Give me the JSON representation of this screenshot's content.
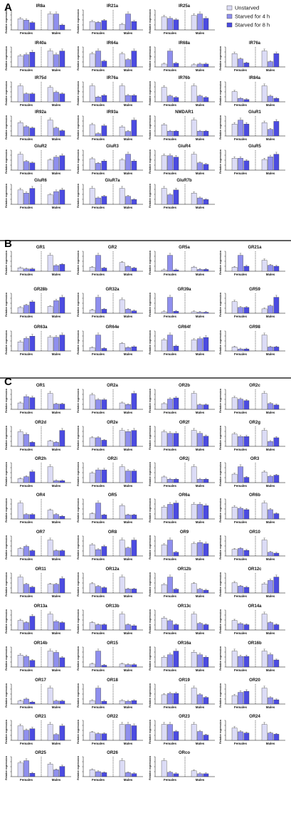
{
  "sections": [
    {
      "letter": "A",
      "panels": [
        {
          "title": "IR8a"
        },
        {
          "title": "IR21a"
        },
        {
          "title": "IR25a"
        },
        {
          "title": "IR40a"
        },
        {
          "title": "IR64a"
        },
        {
          "title": "IR68a"
        },
        {
          "title": "IR76a"
        },
        {
          "title": "IR75d"
        },
        {
          "title": "IR76a"
        },
        {
          "title": "IR76b"
        },
        {
          "title": "IR84a"
        },
        {
          "title": "IR92a"
        },
        {
          "title": "IR93a"
        },
        {
          "title": "NMDAR1"
        },
        {
          "title": "GluR1"
        },
        {
          "title": "GluR2"
        },
        {
          "title": "GluR3"
        },
        {
          "title": "GluR4"
        },
        {
          "title": "GluR5"
        },
        {
          "title": "GluR6"
        },
        {
          "title": "GluR7a"
        },
        {
          "title": "GluR7b"
        }
      ]
    },
    {
      "letter": "B",
      "panels": [
        {
          "title": "GR1"
        },
        {
          "title": "GR2"
        },
        {
          "title": "GR5a"
        },
        {
          "title": "GR21a"
        },
        {
          "title": "GR28b"
        },
        {
          "title": "GR32a"
        },
        {
          "title": "GR39a"
        },
        {
          "title": "GR59"
        },
        {
          "title": "GR63a"
        },
        {
          "title": "GR64e"
        },
        {
          "title": "GR64f"
        },
        {
          "title": "GR98"
        }
      ]
    },
    {
      "letter": "C",
      "panels": [
        {
          "title": "OR1"
        },
        {
          "title": "OR2a"
        },
        {
          "title": "OR2b"
        },
        {
          "title": "OR2c"
        },
        {
          "title": "OR2d"
        },
        {
          "title": "OR2e"
        },
        {
          "title": "OR2f"
        },
        {
          "title": "OR2g"
        },
        {
          "title": "OR2h"
        },
        {
          "title": "OR2i"
        },
        {
          "title": "OR2j"
        },
        {
          "title": "OR3"
        },
        {
          "title": "OR4"
        },
        {
          "title": "OR5"
        },
        {
          "title": "OR6a"
        },
        {
          "title": "OR6b"
        },
        {
          "title": "OR7"
        },
        {
          "title": "OR8"
        },
        {
          "title": "OR9"
        },
        {
          "title": "OR10"
        },
        {
          "title": "OR11"
        },
        {
          "title": "OR12a"
        },
        {
          "title": "OR12b"
        },
        {
          "title": "OR12c"
        },
        {
          "title": "OR13a"
        },
        {
          "title": "OR13b"
        },
        {
          "title": "OR13c"
        },
        {
          "title": "OR14a"
        },
        {
          "title": "OR14b"
        },
        {
          "title": "OR15"
        },
        {
          "title": "OR16a"
        },
        {
          "title": "OR16b"
        },
        {
          "title": "OR17"
        },
        {
          "title": "OR18"
        },
        {
          "title": "OR19"
        },
        {
          "title": "OR20"
        },
        {
          "title": "OR21"
        },
        {
          "title": "OR22"
        },
        {
          "title": "OR23"
        },
        {
          "title": "OR24"
        },
        {
          "title": "OR25"
        },
        {
          "title": "OR26"
        },
        {
          "title": "ORco"
        }
      ]
    }
  ],
  "chart_data": {
    "type": "bar",
    "grid": false,
    "legend_placement": "top-right",
    "groups": [
      "Females",
      "Males"
    ],
    "ylabel": "Relative expression",
    "series": [
      {
        "name": "Unstarved",
        "color": "#dcdcf6"
      },
      {
        "name": "Starved for 4 h",
        "color": "#8f8fee"
      },
      {
        "name": "Starved for 8 h",
        "color": "#4b4be0"
      }
    ],
    "series_note_values": "values per panel: [Females U, 4h, 8h, Males U, 4h, 8h] in relative expression units (estimated)",
    "panels": [
      {
        "title": "IR8a",
        "values": [
          0.9,
          0.8,
          0.6,
          1.3,
          1.3,
          0.4
        ]
      },
      {
        "title": "IR21a",
        "values": [
          0.9,
          0.8,
          1.0,
          0.6,
          1.7,
          0.9
        ]
      },
      {
        "title": "IR25a",
        "values": [
          0.9,
          0.8,
          0.7,
          1.0,
          1.1,
          0.8
        ]
      },
      {
        "title": "IR40a",
        "values": [
          0.9,
          1.0,
          1.2,
          1.3,
          1.0,
          1.3
        ]
      },
      {
        "title": "IR64a",
        "values": [
          0.9,
          1.1,
          0.4,
          0.9,
          0.5,
          1.1
        ]
      },
      {
        "title": "IR68a",
        "values": [
          0.4,
          2.2,
          0.5,
          0.3,
          0.4,
          0.4
        ]
      },
      {
        "title": "IR76a",
        "values": [
          1.0,
          0.6,
          0.3,
          1.2,
          0.4,
          1.0
        ]
      },
      {
        "title": "IR75d",
        "values": [
          1.0,
          0.5,
          0.5,
          0.9,
          0.6,
          0.5
        ]
      },
      {
        "title": "IR76a",
        "values": [
          1.0,
          0.3,
          0.4,
          1.0,
          0.4,
          0.4
        ]
      },
      {
        "title": "IR76b",
        "values": [
          1.0,
          0.4,
          0.3,
          1.1,
          0.4,
          0.3
        ]
      },
      {
        "title": "IR84a",
        "values": [
          0.9,
          0.3,
          0.2,
          1.4,
          0.5,
          0.3
        ]
      },
      {
        "title": "IR92a",
        "values": [
          1.0,
          0.7,
          0.6,
          1.2,
          0.6,
          0.4
        ]
      },
      {
        "title": "IR93a",
        "values": [
          1.0,
          0.2,
          0.9,
          0.8,
          0.4,
          1.4
        ]
      },
      {
        "title": "NMDAR1",
        "values": [
          0.7,
          0.3,
          0.3,
          1.0,
          0.3,
          0.3
        ]
      },
      {
        "title": "GluR1",
        "values": [
          0.9,
          1.2,
          0.9,
          1.0,
          0.5,
          1.1
        ]
      },
      {
        "title": "GluR2",
        "values": [
          1.1,
          0.6,
          0.5,
          0.7,
          0.9,
          1.0
        ]
      },
      {
        "title": "GluR3",
        "values": [
          1.0,
          0.6,
          0.8,
          0.9,
          1.4,
          0.8
        ]
      },
      {
        "title": "GluR4",
        "values": [
          1.0,
          1.0,
          0.9,
          1.1,
          0.5,
          0.4
        ]
      },
      {
        "title": "GluR5",
        "values": [
          0.9,
          0.9,
          0.7,
          0.8,
          1.0,
          1.2
        ]
      },
      {
        "title": "GluR6",
        "values": [
          0.9,
          0.7,
          1.0,
          0.6,
          0.8,
          0.9
        ]
      },
      {
        "title": "GluR7a",
        "values": [
          1.0,
          0.4,
          0.5,
          1.0,
          0.5,
          0.3
        ]
      },
      {
        "title": "GluR7b",
        "values": [
          1.0,
          0.6,
          0.9,
          0.7,
          0.4,
          0.3
        ]
      },
      {
        "title": "GR1",
        "values": [
          0.3,
          0.2,
          0.2,
          1.4,
          0.5,
          0.6
        ]
      },
      {
        "title": "GR2",
        "values": [
          0.5,
          2.0,
          0.4,
          1.1,
          0.6,
          0.4
        ]
      },
      {
        "title": "GR5a",
        "values": [
          0.3,
          3.5,
          0.3,
          0.9,
          0.4,
          0.4
        ]
      },
      {
        "title": "GR21a",
        "values": [
          0.4,
          1.6,
          0.5,
          1.1,
          0.6,
          0.5
        ]
      },
      {
        "title": "GR28b",
        "values": [
          0.5,
          0.7,
          1.0,
          0.6,
          1.1,
          1.4
        ]
      },
      {
        "title": "GR32a",
        "values": [
          0.4,
          2.0,
          0.5,
          1.7,
          0.5,
          0.3
        ]
      },
      {
        "title": "GR39a",
        "values": [
          0.3,
          3.3,
          0.4,
          0.3,
          0.2,
          0.2
        ]
      },
      {
        "title": "GR59",
        "values": [
          0.8,
          0.4,
          0.4,
          0.3,
          0.5,
          1.1
        ]
      },
      {
        "title": "GR63a",
        "values": [
          0.8,
          1.1,
          1.3,
          1.2,
          1.2,
          1.4
        ]
      },
      {
        "title": "GR64e",
        "values": [
          0.4,
          1.9,
          0.3,
          0.9,
          0.4,
          0.5
        ]
      },
      {
        "title": "GR64f",
        "values": [
          0.9,
          1.3,
          0.4,
          0.9,
          1.0,
          1.1
        ]
      },
      {
        "title": "GR98",
        "values": [
          0.4,
          0.2,
          0.2,
          1.6,
          0.4,
          0.4
        ]
      },
      {
        "title": "OR1",
        "values": [
          0.6,
          1.2,
          1.1,
          1.5,
          0.5,
          0.5
        ]
      },
      {
        "title": "OR2a",
        "values": [
          0.9,
          0.6,
          0.6,
          0.4,
          0.3,
          1.0
        ]
      },
      {
        "title": "OR2b",
        "values": [
          0.5,
          0.9,
          1.0,
          1.4,
          0.4,
          0.4
        ]
      },
      {
        "title": "OR2c",
        "values": [
          0.8,
          0.7,
          0.6,
          1.1,
          0.4,
          0.3
        ]
      },
      {
        "title": "OR2d",
        "values": [
          1.1,
          0.9,
          0.3,
          0.4,
          0.3,
          1.2
        ]
      },
      {
        "title": "OR2e",
        "values": [
          0.7,
          0.7,
          0.5,
          1.3,
          1.2,
          1.3
        ]
      },
      {
        "title": "OR2f",
        "values": [
          1.0,
          0.9,
          0.9,
          1.1,
          0.9,
          0.7
        ]
      },
      {
        "title": "OR2g",
        "values": [
          1.0,
          0.8,
          0.8,
          1.3,
          0.4,
          0.7
        ]
      },
      {
        "title": "OR2h",
        "values": [
          0.4,
          0.6,
          1.1,
          1.6,
          0.2,
          0.2
        ]
      },
      {
        "title": "OR2i",
        "values": [
          0.9,
          1.2,
          1.2,
          1.5,
          1.1,
          1.1
        ]
      },
      {
        "title": "OR2j",
        "values": [
          0.5,
          0.3,
          0.3,
          1.4,
          0.3,
          0.3
        ]
      },
      {
        "title": "OR3",
        "values": [
          0.8,
          1.5,
          0.5,
          1.0,
          0.6,
          0.7
        ]
      },
      {
        "title": "OR4",
        "values": [
          1.8,
          0.5,
          0.5,
          1.0,
          0.5,
          0.3
        ]
      },
      {
        "title": "OR5",
        "values": [
          0.4,
          1.2,
          0.3,
          1.0,
          0.3,
          0.3
        ]
      },
      {
        "title": "OR6a",
        "values": [
          0.9,
          1.1,
          1.2,
          1.1,
          1.1,
          1.0
        ]
      },
      {
        "title": "OR6b",
        "values": [
          0.9,
          0.8,
          0.7,
          1.2,
          0.7,
          0.4
        ]
      },
      {
        "title": "OR7",
        "values": [
          0.7,
          0.9,
          0.5,
          1.5,
          0.5,
          0.5
        ]
      },
      {
        "title": "OR8",
        "values": [
          0.7,
          0.4,
          0.6,
          1.0,
          0.5,
          1.0
        ]
      },
      {
        "title": "OR9",
        "values": [
          0.9,
          1.3,
          0.3,
          1.0,
          1.1,
          1.0
        ]
      },
      {
        "title": "OR10",
        "values": [
          0.7,
          0.8,
          0.6,
          1.7,
          0.4,
          0.3
        ]
      },
      {
        "title": "OR11",
        "values": [
          1.1,
          0.6,
          0.4,
          0.6,
          0.6,
          1.0
        ]
      },
      {
        "title": "OR12a",
        "values": [
          0.7,
          0.5,
          0.4,
          1.2,
          0.3,
          0.3
        ]
      },
      {
        "title": "OR12b",
        "values": [
          0.9,
          1.7,
          0.4,
          1.0,
          0.4,
          0.3
        ]
      },
      {
        "title": "OR12c",
        "values": [
          0.9,
          0.6,
          0.5,
          0.8,
          1.1,
          1.4
        ]
      },
      {
        "title": "OR13a",
        "values": [
          0.9,
          0.7,
          1.3,
          1.5,
          0.8,
          0.7
        ]
      },
      {
        "title": "OR13b",
        "values": [
          0.7,
          0.5,
          0.5,
          1.5,
          0.5,
          0.4
        ]
      },
      {
        "title": "OR13c",
        "values": [
          0.9,
          0.7,
          0.4,
          1.2,
          0.5,
          0.4
        ]
      },
      {
        "title": "OR14a",
        "values": [
          0.9,
          0.6,
          0.5,
          1.5,
          0.7,
          0.5
        ]
      },
      {
        "title": "OR14b",
        "values": [
          0.9,
          0.8,
          0.5,
          1.2,
          1.1,
          0.7
        ]
      },
      {
        "title": "OR15",
        "values": [
          0.5,
          2.7,
          0.3,
          0.5,
          0.4,
          0.4
        ]
      },
      {
        "title": "OR16a",
        "values": [
          0.8,
          1.0,
          1.3,
          1.2,
          1.0,
          0.8
        ]
      },
      {
        "title": "OR16b",
        "values": [
          0.9,
          0.6,
          0.6,
          0.9,
          0.7,
          0.4
        ]
      },
      {
        "title": "OR17",
        "values": [
          0.3,
          0.5,
          0.2,
          1.6,
          0.3,
          0.3
        ]
      },
      {
        "title": "OR18",
        "values": [
          0.5,
          2.3,
          0.4,
          0.5,
          0.4,
          0.5
        ]
      },
      {
        "title": "OR19",
        "values": [
          0.7,
          0.8,
          0.8,
          1.2,
          0.7,
          0.5
        ]
      },
      {
        "title": "OR20",
        "values": [
          0.8,
          1.1,
          1.2,
          1.5,
          0.6,
          0.4
        ]
      },
      {
        "title": "OR21",
        "values": [
          1.0,
          0.7,
          0.8,
          1.1,
          0.4,
          1.0
        ]
      },
      {
        "title": "OR22",
        "values": [
          0.6,
          0.5,
          0.5,
          1.2,
          1.2,
          1.1
        ]
      },
      {
        "title": "OR23",
        "values": [
          0.9,
          0.9,
          0.5,
          0.9,
          0.5,
          0.3
        ]
      },
      {
        "title": "OR24",
        "values": [
          1.0,
          0.7,
          0.6,
          1.3,
          0.6,
          0.5
        ]
      },
      {
        "title": "OR25",
        "values": [
          1.2,
          1.4,
          0.3,
          1.1,
          0.6,
          0.9
        ]
      },
      {
        "title": "OR26",
        "values": [
          0.7,
          0.5,
          0.4,
          1.6,
          0.4,
          0.3
        ]
      },
      {
        "title": "ORco",
        "values": [
          1.1,
          0.3,
          0.2,
          0.4,
          0.2,
          0.2
        ]
      }
    ]
  }
}
